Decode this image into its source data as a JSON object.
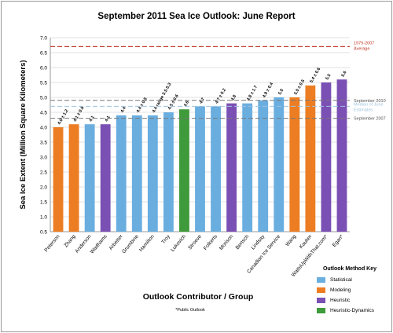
{
  "chart_data": {
    "type": "bar",
    "title": "September 2011 Sea Ice Outlook: June Report",
    "xlabel": "Outlook Contributor / Group",
    "ylabel": "Sea Ice Extent (Million Square Kilometers)",
    "ylim": [
      0.5,
      7.0
    ],
    "yticks": [
      "0.5",
      "1.0",
      "1.5",
      "2.0",
      "2.5",
      "3.0",
      "3.5",
      "4.0",
      "4.5",
      "5.0",
      "5.5",
      "6.0",
      "6.5",
      "7.0"
    ],
    "grid": true,
    "footnote": "*Public Outlook",
    "categories": [
      "Peterson",
      "Zhang",
      "Anderson",
      "Wadhams",
      "Arbetter",
      "Grumbine",
      "Hamilton",
      "Troy",
      "Lukovich",
      "Stroeve",
      "Folkerts",
      "Morison",
      "Bertsch",
      "Lindsay",
      "Canadian Ice Service",
      "Wang",
      "Kauker",
      "WattsUpWithThat.com*",
      "Egan*"
    ],
    "values": [
      4.0,
      4.1,
      4.1,
      4.1,
      4.4,
      4.4,
      4.4,
      4.5,
      4.6,
      4.7,
      4.7,
      4.8,
      4.8,
      4.9,
      5.0,
      5.0,
      5.4,
      5.5,
      5.6
    ],
    "methods": [
      "Modeling",
      "Modeling",
      "Statistical",
      "Heuristic",
      "Statistical",
      "Statistical",
      "Statistical",
      "Statistical",
      "Heuristic-Dynamics",
      "Statistical",
      "Statistical",
      "Heuristic",
      "Statistical",
      "Statistical",
      "Statistical",
      "Modeling",
      "Modeling",
      "Heuristic",
      "Heuristic"
    ],
    "data_labels": [
      "4.0 ± 1.2",
      "4.1 ± 0.6",
      "4.1",
      "4.1",
      "4.4",
      "4.4 ± 0.5",
      "4.4 range 3.5-5.3",
      "4.5 ± 0.6",
      "4.6",
      "4.7",
      "4.7 ± 0.2",
      "4.8",
      "4.8 ± 1.7",
      "4.9 ± 0.4",
      "5.0",
      "5.0 ± 0.5",
      "5.4 ± 0.6",
      "5.5",
      "5.6"
    ],
    "reference_lines": [
      {
        "name": "1979-2007 Average",
        "value": 6.7,
        "color": "#c0392b",
        "label_lines": [
          "1979-2007",
          "Average"
        ]
      },
      {
        "name": "September 2010",
        "value": 4.9,
        "color": "#777777",
        "label_lines": [
          "September 2010"
        ]
      },
      {
        "name": "Median of June Estimates",
        "value": 4.7,
        "color": "#9ec3df",
        "label_lines": [
          "Median of June",
          "Estimates"
        ]
      },
      {
        "name": "September 2007",
        "value": 4.3,
        "color": "#777777",
        "label_lines": [
          "September 2007"
        ]
      }
    ],
    "legend": {
      "title": "Outlook Method Key",
      "placement": "bottom-right",
      "entries": [
        {
          "name": "Statistical",
          "color": "#6aaee0"
        },
        {
          "name": "Modeling",
          "color": "#ec7d22"
        },
        {
          "name": "Heuristic",
          "color": "#7b50b4"
        },
        {
          "name": "Heuristic-Dynamics",
          "color": "#3e9a3a"
        }
      ]
    }
  }
}
